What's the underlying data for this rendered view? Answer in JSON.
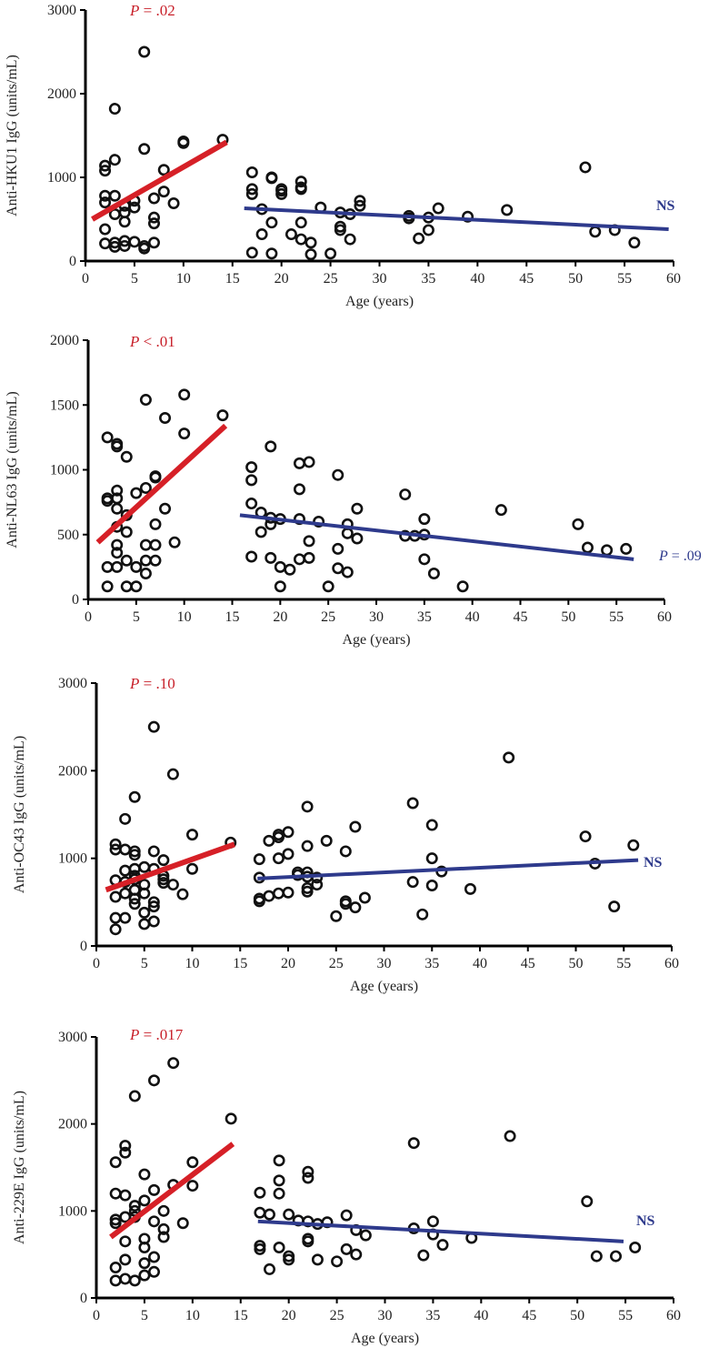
{
  "chart_data": [
    {
      "type": "scatter",
      "xlabel": "Age (years)",
      "ylabel": "Anti-HKU1 IgG (units/mL)",
      "xlim": [
        0,
        60
      ],
      "ylim": [
        0,
        3000
      ],
      "xticks": [
        0,
        5,
        10,
        15,
        20,
        25,
        30,
        35,
        40,
        45,
        50,
        55,
        60
      ],
      "yticks": [
        0,
        1000,
        2000,
        3000
      ],
      "child_annotation": {
        "italic": "P",
        "rest": " = .02"
      },
      "adult_annotation": {
        "italic": "",
        "rest": "NS"
      },
      "adult_annotation_style": "bold",
      "child_trend": {
        "x": [
          0.7,
          14.4
        ],
        "y": [
          500,
          1420
        ]
      },
      "adult_trend": {
        "x": [
          16.2,
          59.5
        ],
        "y": [
          630,
          380
        ]
      },
      "points": [
        [
          2,
          1140
        ],
        [
          2,
          1080
        ],
        [
          2,
          780
        ],
        [
          2,
          700
        ],
        [
          2,
          380
        ],
        [
          2,
          210
        ],
        [
          3,
          1820
        ],
        [
          3,
          1210
        ],
        [
          3,
          780
        ],
        [
          3,
          560
        ],
        [
          3,
          220
        ],
        [
          3,
          170
        ],
        [
          4,
          660
        ],
        [
          4,
          580
        ],
        [
          4,
          470
        ],
        [
          4,
          240
        ],
        [
          4,
          180
        ],
        [
          5,
          720
        ],
        [
          5,
          640
        ],
        [
          5,
          230
        ],
        [
          6,
          2500
        ],
        [
          6,
          1340
        ],
        [
          6,
          180
        ],
        [
          6,
          150
        ],
        [
          7,
          750
        ],
        [
          7,
          520
        ],
        [
          7,
          450
        ],
        [
          7,
          220
        ],
        [
          8,
          1090
        ],
        [
          8,
          830
        ],
        [
          9,
          690
        ],
        [
          10,
          1430
        ],
        [
          10,
          1410
        ],
        [
          14,
          1450
        ],
        [
          17,
          1060
        ],
        [
          17,
          860
        ],
        [
          17,
          800
        ],
        [
          17,
          100
        ],
        [
          18,
          620
        ],
        [
          18,
          320
        ],
        [
          19,
          1000
        ],
        [
          19,
          990
        ],
        [
          19,
          460
        ],
        [
          19,
          90
        ],
        [
          20,
          860
        ],
        [
          20,
          840
        ],
        [
          20,
          800
        ],
        [
          21,
          320
        ],
        [
          22,
          950
        ],
        [
          22,
          880
        ],
        [
          22,
          860
        ],
        [
          22,
          460
        ],
        [
          22,
          260
        ],
        [
          23,
          220
        ],
        [
          23,
          80
        ],
        [
          24,
          640
        ],
        [
          25,
          90
        ],
        [
          26,
          580
        ],
        [
          26,
          410
        ],
        [
          26,
          370
        ],
        [
          27,
          260
        ],
        [
          27,
          560
        ],
        [
          28,
          720
        ],
        [
          28,
          660
        ],
        [
          33,
          540
        ],
        [
          33,
          510
        ],
        [
          34,
          270
        ],
        [
          35,
          520
        ],
        [
          35,
          370
        ],
        [
          36,
          630
        ],
        [
          39,
          530
        ],
        [
          43,
          610
        ],
        [
          51,
          1120
        ],
        [
          52,
          350
        ],
        [
          54,
          370
        ],
        [
          56,
          220
        ]
      ]
    },
    {
      "type": "scatter",
      "xlabel": "Age (years)",
      "ylabel": "Anti-NL63 IgG (units/mL)",
      "xlim": [
        0,
        60
      ],
      "ylim": [
        0,
        2000
      ],
      "xticks": [
        0,
        5,
        10,
        15,
        20,
        25,
        30,
        35,
        40,
        45,
        50,
        55,
        60
      ],
      "yticks": [
        0,
        500,
        1000,
        1500,
        2000
      ],
      "child_annotation": {
        "italic": "P",
        "rest": " < .01"
      },
      "adult_annotation": {
        "italic": "P",
        "rest": " = .09"
      },
      "adult_annotation_style": "normal",
      "child_trend": {
        "x": [
          1.0,
          14.3
        ],
        "y": [
          440,
          1340
        ]
      },
      "adult_trend": {
        "x": [
          15.8,
          56.8
        ],
        "y": [
          650,
          310
        ]
      },
      "points": [
        [
          2,
          1250
        ],
        [
          2,
          780
        ],
        [
          2,
          760
        ],
        [
          2,
          250
        ],
        [
          2,
          100
        ],
        [
          3,
          1200
        ],
        [
          3,
          1180
        ],
        [
          3,
          840
        ],
        [
          3,
          780
        ],
        [
          3,
          700
        ],
        [
          3,
          560
        ],
        [
          3,
          420
        ],
        [
          3,
          360
        ],
        [
          3,
          250
        ],
        [
          4,
          1100
        ],
        [
          4,
          650
        ],
        [
          4,
          520
        ],
        [
          4,
          300
        ],
        [
          4,
          100
        ],
        [
          5,
          820
        ],
        [
          5,
          250
        ],
        [
          5,
          100
        ],
        [
          6,
          1540
        ],
        [
          6,
          860
        ],
        [
          6,
          420
        ],
        [
          6,
          200
        ],
        [
          6,
          300
        ],
        [
          7,
          950
        ],
        [
          7,
          940
        ],
        [
          7,
          580
        ],
        [
          7,
          420
        ],
        [
          7,
          300
        ],
        [
          8,
          1400
        ],
        [
          8,
          700
        ],
        [
          9,
          440
        ],
        [
          10,
          1580
        ],
        [
          10,
          1280
        ],
        [
          14,
          1420
        ],
        [
          17,
          1020
        ],
        [
          17,
          920
        ],
        [
          17,
          740
        ],
        [
          17,
          330
        ],
        [
          18,
          670
        ],
        [
          18,
          520
        ],
        [
          19,
          1180
        ],
        [
          19,
          630
        ],
        [
          19,
          580
        ],
        [
          19,
          320
        ],
        [
          20,
          620
        ],
        [
          20,
          250
        ],
        [
          20,
          100
        ],
        [
          21,
          230
        ],
        [
          22,
          1050
        ],
        [
          22,
          850
        ],
        [
          22,
          620
        ],
        [
          22,
          310
        ],
        [
          23,
          1060
        ],
        [
          23,
          450
        ],
        [
          23,
          320
        ],
        [
          24,
          600
        ],
        [
          25,
          100
        ],
        [
          26,
          960
        ],
        [
          26,
          390
        ],
        [
          26,
          240
        ],
        [
          27,
          580
        ],
        [
          27,
          510
        ],
        [
          27,
          210
        ],
        [
          28,
          700
        ],
        [
          28,
          470
        ],
        [
          33,
          810
        ],
        [
          33,
          490
        ],
        [
          34,
          490
        ],
        [
          35,
          620
        ],
        [
          35,
          500
        ],
        [
          35,
          310
        ],
        [
          36,
          200
        ],
        [
          39,
          100
        ],
        [
          43,
          690
        ],
        [
          51,
          580
        ],
        [
          52,
          400
        ],
        [
          54,
          380
        ],
        [
          56,
          390
        ]
      ]
    },
    {
      "type": "scatter",
      "xlabel": "Age (years)",
      "ylabel": "Anti-OC43 IgG (units/mL)",
      "xlim": [
        0,
        60
      ],
      "ylim": [
        0,
        3000
      ],
      "xticks": [
        0,
        5,
        10,
        15,
        20,
        25,
        30,
        35,
        40,
        45,
        50,
        55,
        60
      ],
      "yticks": [
        0,
        1000,
        2000,
        3000
      ],
      "child_annotation": {
        "italic": "P",
        "rest": " = .10"
      },
      "adult_annotation": {
        "italic": "",
        "rest": "NS"
      },
      "adult_annotation_style": "bold",
      "child_trend": {
        "x": [
          1.0,
          14.4
        ],
        "y": [
          640,
          1160
        ]
      },
      "adult_trend": {
        "x": [
          16.8,
          56.5
        ],
        "y": [
          770,
          980
        ]
      },
      "points": [
        [
          2,
          1160
        ],
        [
          2,
          1100
        ],
        [
          2,
          750
        ],
        [
          2,
          560
        ],
        [
          2,
          320
        ],
        [
          2,
          190
        ],
        [
          3,
          1450
        ],
        [
          3,
          1100
        ],
        [
          3,
          860
        ],
        [
          3,
          730
        ],
        [
          3,
          600
        ],
        [
          3,
          320
        ],
        [
          4,
          1700
        ],
        [
          4,
          1080
        ],
        [
          4,
          1040
        ],
        [
          4,
          880
        ],
        [
          4,
          800
        ],
        [
          4,
          760
        ],
        [
          4,
          640
        ],
        [
          4,
          540
        ],
        [
          4,
          480
        ],
        [
          5,
          900
        ],
        [
          5,
          700
        ],
        [
          5,
          600
        ],
        [
          5,
          380
        ],
        [
          5,
          250
        ],
        [
          6,
          2500
        ],
        [
          6,
          1080
        ],
        [
          6,
          880
        ],
        [
          6,
          500
        ],
        [
          6,
          450
        ],
        [
          6,
          280
        ],
        [
          7,
          980
        ],
        [
          7,
          800
        ],
        [
          7,
          760
        ],
        [
          7,
          720
        ],
        [
          8,
          1960
        ],
        [
          8,
          700
        ],
        [
          9,
          590
        ],
        [
          10,
          1270
        ],
        [
          10,
          880
        ],
        [
          14,
          1180
        ],
        [
          17,
          990
        ],
        [
          17,
          780
        ],
        [
          17,
          540
        ],
        [
          17,
          510
        ],
        [
          18,
          1200
        ],
        [
          18,
          570
        ],
        [
          19,
          1270
        ],
        [
          19,
          1240
        ],
        [
          19,
          1000
        ],
        [
          19,
          600
        ],
        [
          20,
          1300
        ],
        [
          20,
          1050
        ],
        [
          20,
          610
        ],
        [
          21,
          840
        ],
        [
          21,
          810
        ],
        [
          22,
          1590
        ],
        [
          22,
          1140
        ],
        [
          22,
          840
        ],
        [
          22,
          790
        ],
        [
          22,
          660
        ],
        [
          22,
          620
        ],
        [
          23,
          780
        ],
        [
          23,
          700
        ],
        [
          24,
          1200
        ],
        [
          25,
          340
        ],
        [
          26,
          1080
        ],
        [
          26,
          510
        ],
        [
          26,
          480
        ],
        [
          27,
          1360
        ],
        [
          27,
          440
        ],
        [
          28,
          550
        ],
        [
          33,
          1630
        ],
        [
          33,
          730
        ],
        [
          34,
          360
        ],
        [
          35,
          1380
        ],
        [
          35,
          1000
        ],
        [
          35,
          690
        ],
        [
          36,
          850
        ],
        [
          39,
          650
        ],
        [
          43,
          2150
        ],
        [
          51,
          1250
        ],
        [
          52,
          940
        ],
        [
          54,
          450
        ],
        [
          56,
          1150
        ]
      ]
    },
    {
      "type": "scatter",
      "xlabel": "Age (years)",
      "ylabel": "Anti-229E IgG (units/mL)",
      "xlim": [
        0,
        60
      ],
      "ylim": [
        0,
        3000
      ],
      "xticks": [
        0,
        5,
        10,
        15,
        20,
        25,
        30,
        35,
        40,
        45,
        50,
        55,
        60
      ],
      "yticks": [
        0,
        1000,
        2000,
        3000
      ],
      "child_annotation": {
        "italic": "P",
        "rest": " = .017"
      },
      "adult_annotation": {
        "italic": "",
        "rest": "NS"
      },
      "adult_annotation_style": "bold",
      "child_trend": {
        "x": [
          1.5,
          14.2
        ],
        "y": [
          700,
          1770
        ]
      },
      "adult_trend": {
        "x": [
          16.8,
          54.8
        ],
        "y": [
          880,
          650
        ]
      },
      "points": [
        [
          2,
          1560
        ],
        [
          2,
          1200
        ],
        [
          2,
          900
        ],
        [
          2,
          860
        ],
        [
          2,
          350
        ],
        [
          2,
          200
        ],
        [
          3,
          1750
        ],
        [
          3,
          1670
        ],
        [
          3,
          1180
        ],
        [
          3,
          930
        ],
        [
          3,
          650
        ],
        [
          3,
          440
        ],
        [
          3,
          220
        ],
        [
          4,
          2320
        ],
        [
          4,
          1060
        ],
        [
          4,
          1000
        ],
        [
          4,
          930
        ],
        [
          4,
          200
        ],
        [
          5,
          1420
        ],
        [
          5,
          1120
        ],
        [
          5,
          680
        ],
        [
          5,
          580
        ],
        [
          5,
          400
        ],
        [
          5,
          260
        ],
        [
          6,
          2500
        ],
        [
          6,
          1240
        ],
        [
          6,
          880
        ],
        [
          6,
          470
        ],
        [
          6,
          300
        ],
        [
          7,
          1000
        ],
        [
          7,
          790
        ],
        [
          7,
          700
        ],
        [
          8,
          2700
        ],
        [
          8,
          1300
        ],
        [
          9,
          860
        ],
        [
          10,
          1560
        ],
        [
          10,
          1290
        ],
        [
          14,
          2060
        ],
        [
          17,
          1210
        ],
        [
          17,
          980
        ],
        [
          17,
          600
        ],
        [
          17,
          560
        ],
        [
          18,
          960
        ],
        [
          18,
          330
        ],
        [
          19,
          1580
        ],
        [
          19,
          1350
        ],
        [
          19,
          1200
        ],
        [
          19,
          580
        ],
        [
          20,
          960
        ],
        [
          20,
          480
        ],
        [
          20,
          440
        ],
        [
          21,
          890
        ],
        [
          22,
          1450
        ],
        [
          22,
          1380
        ],
        [
          22,
          880
        ],
        [
          22,
          680
        ],
        [
          22,
          650
        ],
        [
          23,
          850
        ],
        [
          23,
          440
        ],
        [
          24,
          870
        ],
        [
          25,
          420
        ],
        [
          26,
          950
        ],
        [
          26,
          560
        ],
        [
          27,
          500
        ],
        [
          27,
          780
        ],
        [
          28,
          720
        ],
        [
          33,
          1780
        ],
        [
          33,
          800
        ],
        [
          34,
          490
        ],
        [
          35,
          880
        ],
        [
          35,
          730
        ],
        [
          36,
          610
        ],
        [
          39,
          690
        ],
        [
          43,
          1860
        ],
        [
          51,
          1110
        ],
        [
          52,
          480
        ],
        [
          54,
          480
        ],
        [
          56,
          580
        ]
      ]
    }
  ]
}
